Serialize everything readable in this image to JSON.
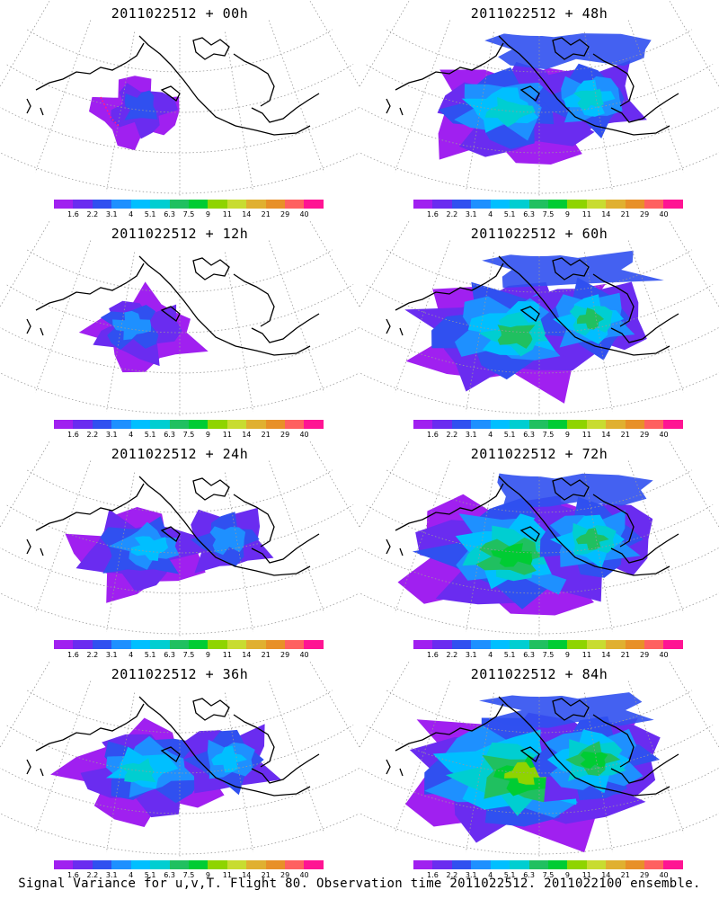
{
  "panels": [
    {
      "title": "2011022512 + 00h",
      "lead_hours": 0
    },
    {
      "title": "2011022512 + 48h",
      "lead_hours": 48
    },
    {
      "title": "2011022512 + 12h",
      "lead_hours": 12
    },
    {
      "title": "2011022512 + 60h",
      "lead_hours": 60
    },
    {
      "title": "2011022512 + 24h",
      "lead_hours": 24
    },
    {
      "title": "2011022512 + 72h",
      "lead_hours": 72
    },
    {
      "title": "2011022512 + 36h",
      "lead_hours": 36
    },
    {
      "title": "2011022512 + 84h",
      "lead_hours": 84
    }
  ],
  "colorbar": {
    "labels": [
      "1.6",
      "2.2",
      "3.1",
      "4",
      "5.1",
      "6.3",
      "7.5",
      "9",
      "11",
      "14",
      "21",
      "29",
      "40"
    ],
    "colors": [
      "#a020f0",
      "#6a2cf0",
      "#3050f0",
      "#1e90ff",
      "#00bfff",
      "#00ced1",
      "#20c060",
      "#00cc33",
      "#8fd400",
      "#c8dc30",
      "#e0b030",
      "#e89028",
      "#ff6060",
      "#ff1493"
    ]
  },
  "caption": "Signal Variance for u,v,T. Flight 80. Observation time 2011022512. 2011022100 ensemble.",
  "colors": {
    "coast": "#000000",
    "grid": "#9a9a9a",
    "obs_marker": "#ff1493"
  }
}
